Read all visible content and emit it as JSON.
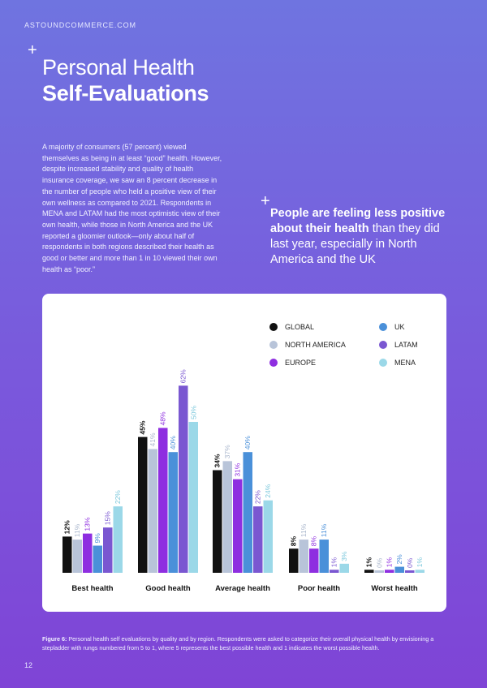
{
  "brand": "ASTOUNDCOMMERCE.COM",
  "title": {
    "line1": "Personal Health",
    "line2": "Self-Evaluations"
  },
  "intro": "A majority of consumers (57 percent) viewed themselves as being in at least “good” health. However, despite increased stability and quality of health insurance coverage, we saw an 8 percent decrease in the number of people who held a positive view of their own wellness as compared to 2021. Respondents in MENA and LATAM had the most optimistic view of their own health, while those in North America and the UK reported a gloomier outlook—only about half of respondents in both regions described their health as good or better and more than 1 in 10 viewed their own health as “poor.”",
  "callout": {
    "bold": "People are feeling less positive about their health",
    "rest": "than they did last year, especially in North America and the UK"
  },
  "legend": [
    {
      "label": "GLOBAL",
      "color": "#111111"
    },
    {
      "label": "UK",
      "color": "#4a90d9"
    },
    {
      "label": "NORTH AMERICA",
      "color": "#b8c4d9"
    },
    {
      "label": "LATAM",
      "color": "#7a57d1"
    },
    {
      "label": "EUROPE",
      "color": "#8e2ee0"
    },
    {
      "label": "MENA",
      "color": "#9bd8e8"
    }
  ],
  "chart_data": {
    "type": "bar",
    "title": "",
    "categories": [
      "Best health",
      "Good health",
      "Average health",
      "Poor health",
      "Worst health"
    ],
    "series": [
      {
        "name": "GLOBAL",
        "color": "#111111",
        "values": [
          12,
          45,
          34,
          8,
          1
        ]
      },
      {
        "name": "NORTH AMERICA",
        "color": "#b8c4d9",
        "values": [
          11,
          41,
          37,
          11,
          0
        ]
      },
      {
        "name": "EUROPE",
        "color": "#8e2ee0",
        "values": [
          13,
          48,
          31,
          8,
          1
        ]
      },
      {
        "name": "UK",
        "color": "#4a90d9",
        "values": [
          9,
          40,
          40,
          11,
          2
        ]
      },
      {
        "name": "LATAM",
        "color": "#7a57d1",
        "values": [
          15,
          62,
          22,
          1,
          0
        ]
      },
      {
        "name": "MENA",
        "color": "#9bd8e8",
        "values": [
          22,
          50,
          24,
          3,
          1
        ]
      }
    ],
    "ylim": [
      0,
      65
    ],
    "grid": false,
    "legend_position": "top-right"
  },
  "caption": {
    "label": "Figure 6:",
    "text": "Personal health self evaluations by quality and by region. Respondents were asked to categorize their overall physical health by envisioning a stepladder with rungs numbered from 5 to 1, where 5 represents the best possible health and 1 indicates the worst possible health."
  },
  "page_number": "12"
}
